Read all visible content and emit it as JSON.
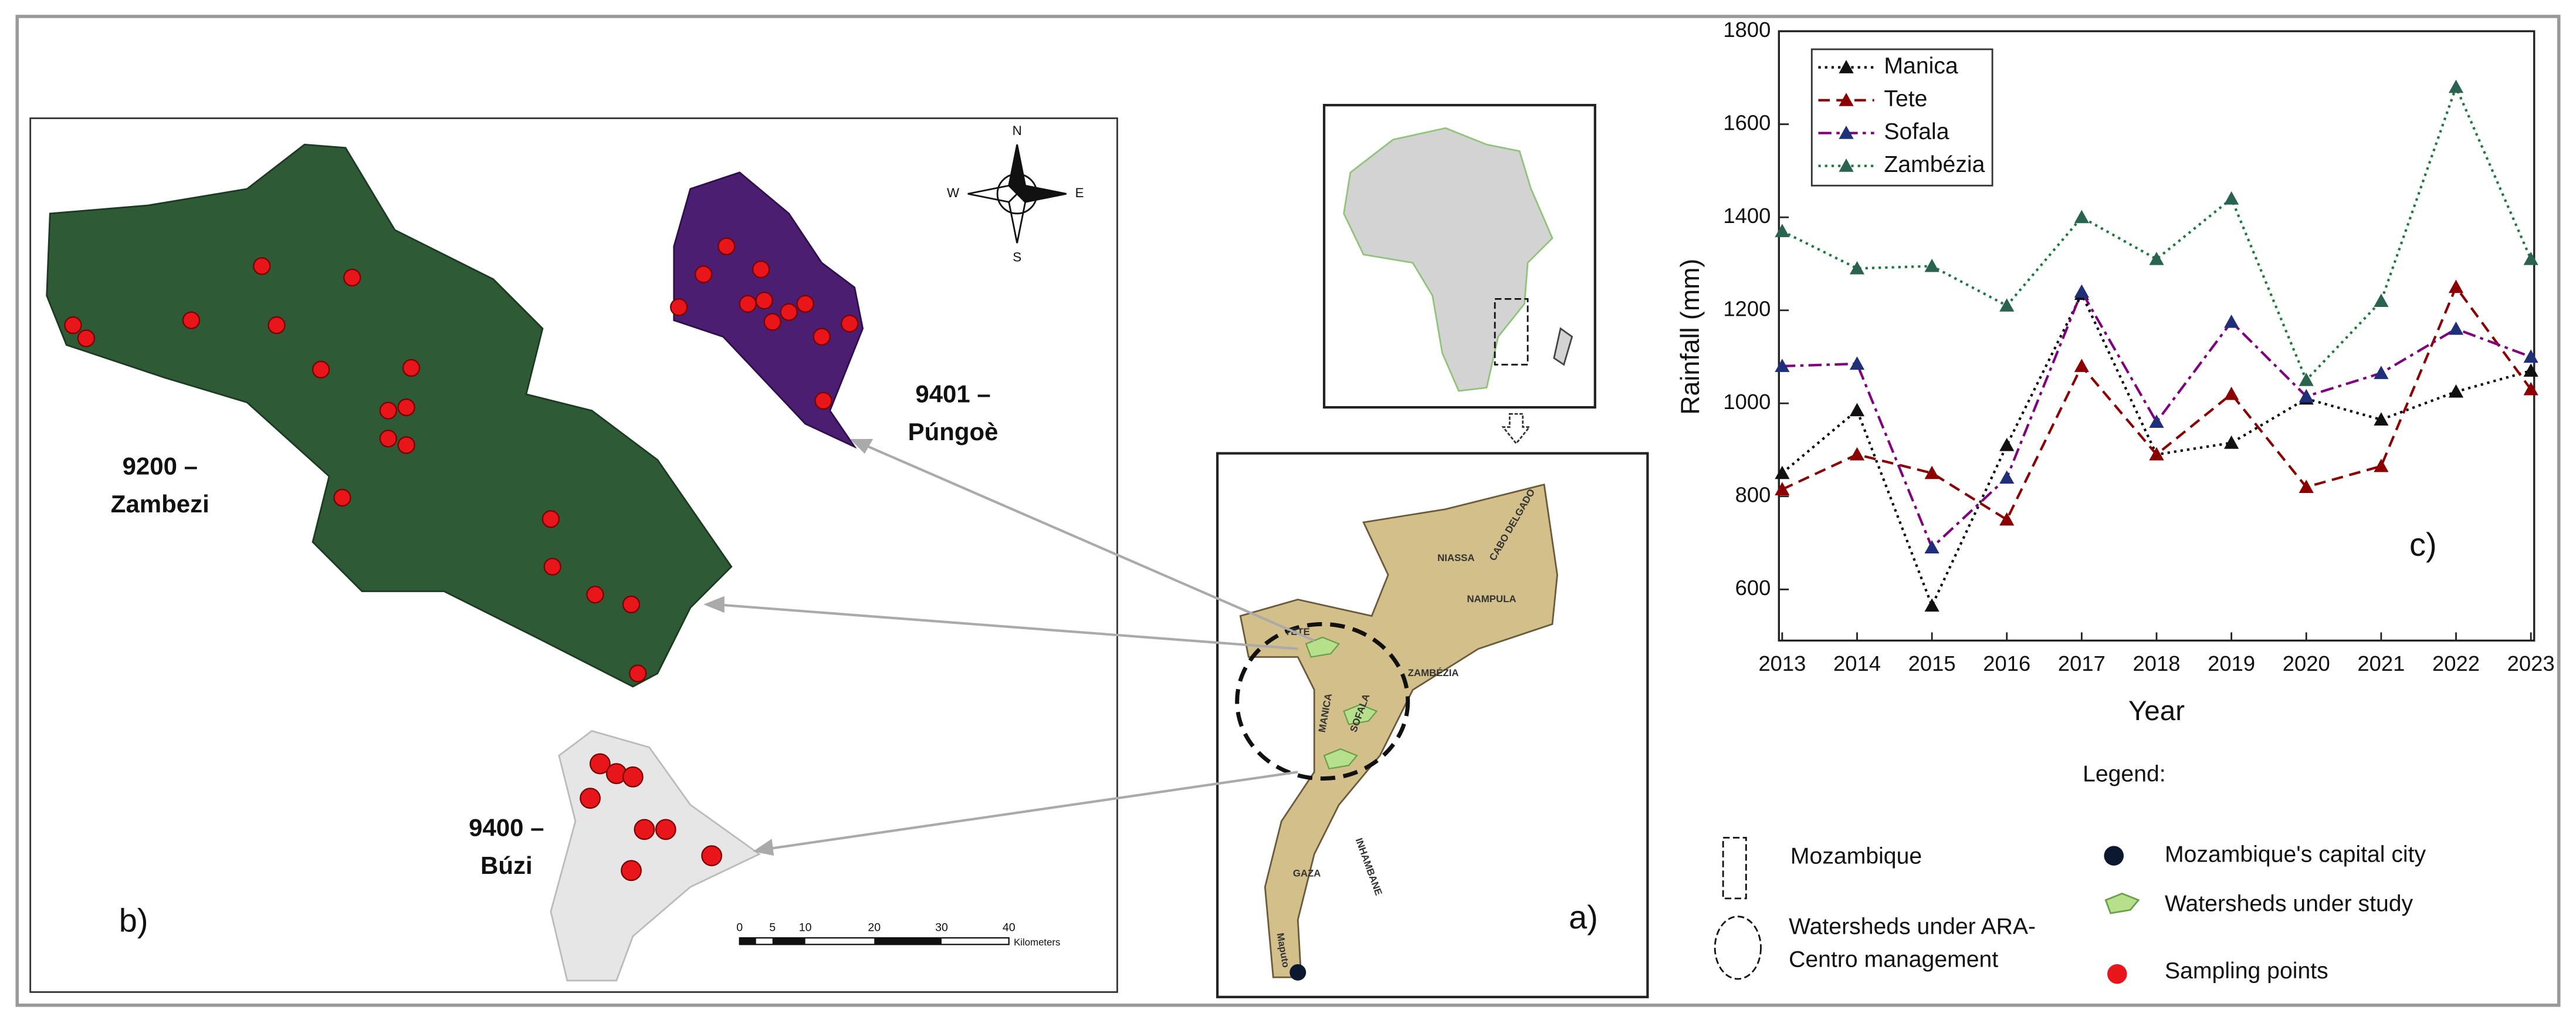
{
  "chart_data": {
    "type": "line",
    "x": [
      2013,
      2014,
      2015,
      2016,
      2017,
      2018,
      2019,
      2020,
      2021,
      2022,
      2023
    ],
    "xlim": [
      2013,
      2023
    ],
    "xticks": [
      2013,
      2014,
      2015,
      2016,
      2017,
      2018,
      2019,
      2020,
      2021,
      2022,
      2023
    ],
    "ylim": [
      490,
      1800
    ],
    "yticks": [
      600,
      800,
      1000,
      1200,
      1400,
      1600,
      1800
    ],
    "ylabel": "Rainfall (mm)",
    "xlabel": "Year",
    "panel_label": "c)",
    "legend": "upper-left",
    "series": [
      {
        "name": "Manica",
        "color": "#000000",
        "marker_color": "#111111",
        "dash": "1.5,2.5",
        "values": [
          850,
          985,
          565,
          910,
          1235,
          890,
          915,
          1010,
          965,
          1025,
          1070
        ]
      },
      {
        "name": "Tete",
        "color": "#8b0000",
        "marker_color": "#8b0000",
        "dash": "7,4",
        "values": [
          815,
          890,
          850,
          750,
          1080,
          890,
          1020,
          820,
          865,
          1250,
          1030
        ]
      },
      {
        "name": "Sofala",
        "color": "#800080",
        "marker_color": "#1f2f7a",
        "dash": "8,3,2,3",
        "values": [
          1080,
          1085,
          690,
          840,
          1240,
          960,
          1175,
          1015,
          1065,
          1160,
          1100
        ]
      },
      {
        "name": "Zambézia",
        "color": "#1a7a3a",
        "marker_color": "#2a6450",
        "dash": "1.5,2.5",
        "values": [
          1370,
          1290,
          1295,
          1210,
          1400,
          1310,
          1440,
          1050,
          1220,
          1680,
          1310
        ]
      }
    ]
  },
  "panels": {
    "b": {
      "label": "b)",
      "zambezi": [
        "9200 –",
        "Zambezi"
      ],
      "pungoe": [
        "9401 –",
        "Púngoè"
      ],
      "buzi": [
        "9400 –",
        "Búzi"
      ],
      "scale": [
        "0",
        "5",
        "10",
        "20",
        "30",
        "40"
      ],
      "scale_unit": "Kilometers",
      "compass": [
        "N",
        "S",
        "W",
        "E"
      ]
    },
    "a": {
      "label": "a)",
      "provinces": [
        "NIASSA",
        "CABO DELGADO",
        "NAMPULA",
        "ZAMBÉZIA",
        "TETE",
        "MANICA",
        "SOFALA",
        "INHAMBANE",
        "GAZA",
        "Maputo"
      ]
    },
    "legend": {
      "title": "Legend:",
      "items": [
        "Mozambique",
        "Watersheds under ARA-",
        "Centro management",
        "Mozambique's capital city",
        "Watersheds under study",
        "Sampling points"
      ]
    }
  }
}
